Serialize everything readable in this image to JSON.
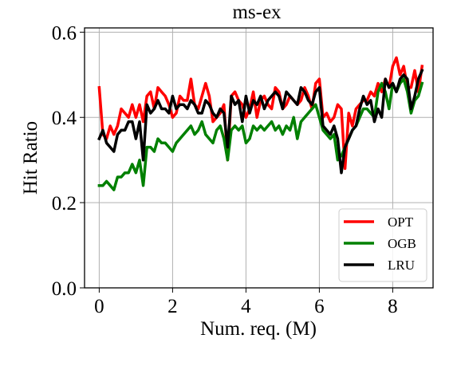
{
  "chart_data": {
    "type": "line",
    "title": "ms-ex",
    "xlabel": "Num. req. (M)",
    "ylabel": "Hit Ratio",
    "xlim": [
      -0.4,
      9.1
    ],
    "ylim": [
      0.0,
      0.61
    ],
    "xticks": [
      0,
      2,
      4,
      6,
      8
    ],
    "yticks": [
      0.0,
      0.2,
      0.4,
      0.6
    ],
    "xtick_labels": [
      "0",
      "2",
      "4",
      "6",
      "8"
    ],
    "ytick_labels": [
      "0.0",
      "0.2",
      "0.4",
      "0.6"
    ],
    "grid": true,
    "legend_position": "lower-right",
    "x": [
      0.0,
      0.1,
      0.2,
      0.3,
      0.4,
      0.5,
      0.6,
      0.7,
      0.8,
      0.9,
      1.0,
      1.1,
      1.2,
      1.3,
      1.4,
      1.5,
      1.6,
      1.7,
      1.8,
      1.9,
      2.0,
      2.1,
      2.2,
      2.3,
      2.4,
      2.5,
      2.6,
      2.7,
      2.8,
      2.9,
      3.0,
      3.1,
      3.2,
      3.3,
      3.4,
      3.5,
      3.6,
      3.7,
      3.8,
      3.9,
      4.0,
      4.1,
      4.2,
      4.3,
      4.4,
      4.5,
      4.6,
      4.7,
      4.8,
      4.9,
      5.0,
      5.1,
      5.2,
      5.3,
      5.4,
      5.5,
      5.6,
      5.7,
      5.8,
      5.9,
      6.0,
      6.1,
      6.2,
      6.3,
      6.4,
      6.5,
      6.6,
      6.7,
      6.8,
      6.9,
      7.0,
      7.1,
      7.2,
      7.3,
      7.4,
      7.5,
      7.6,
      7.7,
      7.8,
      7.9,
      8.0,
      8.1,
      8.2,
      8.3,
      8.4,
      8.5,
      8.6,
      8.7,
      8.8
    ],
    "series": [
      {
        "name": "OPT",
        "color": "#ff0000",
        "values": [
          0.47,
          0.36,
          0.35,
          0.38,
          0.36,
          0.38,
          0.42,
          0.41,
          0.4,
          0.43,
          0.4,
          0.43,
          0.39,
          0.45,
          0.46,
          0.42,
          0.47,
          0.46,
          0.45,
          0.43,
          0.4,
          0.41,
          0.45,
          0.44,
          0.44,
          0.49,
          0.43,
          0.42,
          0.45,
          0.48,
          0.45,
          0.39,
          0.4,
          0.41,
          0.43,
          0.3,
          0.45,
          0.46,
          0.44,
          0.43,
          0.4,
          0.42,
          0.46,
          0.4,
          0.44,
          0.45,
          0.43,
          0.42,
          0.47,
          0.46,
          0.42,
          0.43,
          0.45,
          0.44,
          0.43,
          0.44,
          0.47,
          0.45,
          0.42,
          0.48,
          0.49,
          0.4,
          0.41,
          0.39,
          0.4,
          0.43,
          0.42,
          0.28,
          0.41,
          0.38,
          0.42,
          0.43,
          0.44,
          0.44,
          0.46,
          0.45,
          0.48,
          0.46,
          0.49,
          0.47,
          0.52,
          0.54,
          0.5,
          0.52,
          0.47,
          0.47,
          0.51,
          0.46,
          0.52
        ]
      },
      {
        "name": "OGB",
        "color": "#008000",
        "values": [
          0.24,
          0.24,
          0.25,
          0.24,
          0.23,
          0.26,
          0.26,
          0.27,
          0.27,
          0.29,
          0.27,
          0.3,
          0.24,
          0.33,
          0.33,
          0.32,
          0.35,
          0.34,
          0.34,
          0.33,
          0.32,
          0.34,
          0.35,
          0.36,
          0.37,
          0.38,
          0.36,
          0.37,
          0.39,
          0.36,
          0.35,
          0.34,
          0.37,
          0.38,
          0.35,
          0.3,
          0.37,
          0.38,
          0.37,
          0.38,
          0.34,
          0.35,
          0.38,
          0.37,
          0.38,
          0.37,
          0.38,
          0.39,
          0.37,
          0.38,
          0.36,
          0.38,
          0.37,
          0.4,
          0.35,
          0.39,
          0.4,
          0.41,
          0.42,
          0.43,
          0.4,
          0.37,
          0.36,
          0.35,
          0.36,
          0.3,
          0.31,
          0.33,
          0.35,
          0.37,
          0.38,
          0.4,
          0.42,
          0.42,
          0.41,
          0.4,
          0.46,
          0.48,
          0.46,
          0.42,
          0.48,
          0.46,
          0.48,
          0.49,
          0.46,
          0.41,
          0.44,
          0.45,
          0.48
        ]
      },
      {
        "name": "LRU",
        "color": "#000000",
        "values": [
          0.35,
          0.37,
          0.34,
          0.33,
          0.32,
          0.36,
          0.37,
          0.37,
          0.39,
          0.39,
          0.35,
          0.39,
          0.3,
          0.43,
          0.41,
          0.42,
          0.44,
          0.42,
          0.42,
          0.41,
          0.45,
          0.42,
          0.43,
          0.43,
          0.42,
          0.44,
          0.43,
          0.41,
          0.41,
          0.44,
          0.43,
          0.41,
          0.4,
          0.42,
          0.41,
          0.33,
          0.45,
          0.43,
          0.44,
          0.39,
          0.45,
          0.41,
          0.44,
          0.43,
          0.45,
          0.42,
          0.44,
          0.45,
          0.46,
          0.45,
          0.42,
          0.46,
          0.45,
          0.44,
          0.43,
          0.47,
          0.46,
          0.44,
          0.43,
          0.46,
          0.47,
          0.38,
          0.37,
          0.36,
          0.38,
          0.35,
          0.27,
          0.33,
          0.35,
          0.37,
          0.38,
          0.42,
          0.45,
          0.43,
          0.44,
          0.39,
          0.42,
          0.4,
          0.49,
          0.47,
          0.48,
          0.46,
          0.49,
          0.5,
          0.49,
          0.42,
          0.45,
          0.49,
          0.51
        ]
      }
    ]
  }
}
